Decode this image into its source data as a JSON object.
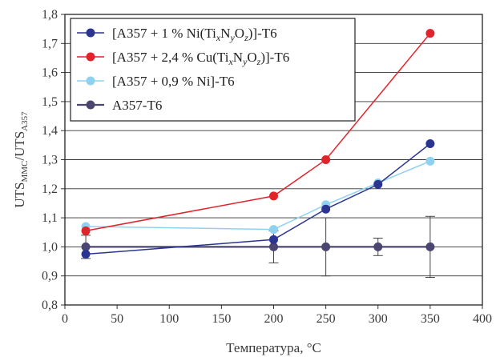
{
  "chart_data": {
    "type": "line",
    "xlabel": "Температура, °C",
    "ylabel": {
      "main": "UTS",
      "sub1": "MMC",
      "mid": "/UTS",
      "sub2": "A357"
    },
    "xlim": [
      0,
      400
    ],
    "ylim": [
      0.8,
      1.8
    ],
    "x_ticks": [
      "0",
      "50",
      "100",
      "150",
      "200",
      "250",
      "300",
      "350",
      "400"
    ],
    "y_ticks": [
      "0,8",
      "0,9",
      "1,0",
      "1,1",
      "1,2",
      "1,3",
      "1,4",
      "1,5",
      "1,6",
      "1,7",
      "1,8"
    ],
    "grid": true,
    "legend_position": "top-left",
    "series": [
      {
        "name": "[A357 + 1 % Ni(TixNyOz)]-T6",
        "legend": {
          "pre": "[A357 + 1 % Ni(Ti",
          "s1": "x",
          "m1": "N",
          "s2": "y",
          "m2": "O",
          "s3": "z",
          "post": ")]-T6"
        },
        "color": "#2b3591",
        "x": [
          20,
          200,
          250,
          300,
          350
        ],
        "y": [
          0.975,
          1.025,
          1.13,
          1.215,
          1.355
        ]
      },
      {
        "name": "[A357 + 2,4 % Cu(TixNyOz)]-T6",
        "legend": {
          "pre": "[A357 + 2,4 % Cu(Ti",
          "s1": "x",
          "m1": "N",
          "s2": "y",
          "m2": "O",
          "s3": "z",
          "post": ")]-T6"
        },
        "color": "#e0242b",
        "x": [
          20,
          200,
          250,
          350
        ],
        "y": [
          1.055,
          1.175,
          1.3,
          1.735
        ]
      },
      {
        "name": "[A357 + 0,9 % Ni]-T6",
        "legend": {
          "pre": "[A357 + 0,9 % Ni]-T6"
        },
        "color": "#8fd2f0",
        "x": [
          20,
          200,
          250,
          300,
          350
        ],
        "y": [
          1.07,
          1.06,
          1.145,
          1.22,
          1.295
        ]
      },
      {
        "name": "A357-T6",
        "legend": {
          "pre": "A357-T6"
        },
        "color": "#4a4670",
        "x": [
          20,
          200,
          250,
          300,
          350
        ],
        "y": [
          1.0,
          1.0,
          1.0,
          1.0,
          1.0
        ],
        "error": [
          0.04,
          0.055,
          0.1,
          0.03,
          0.105
        ]
      }
    ]
  }
}
